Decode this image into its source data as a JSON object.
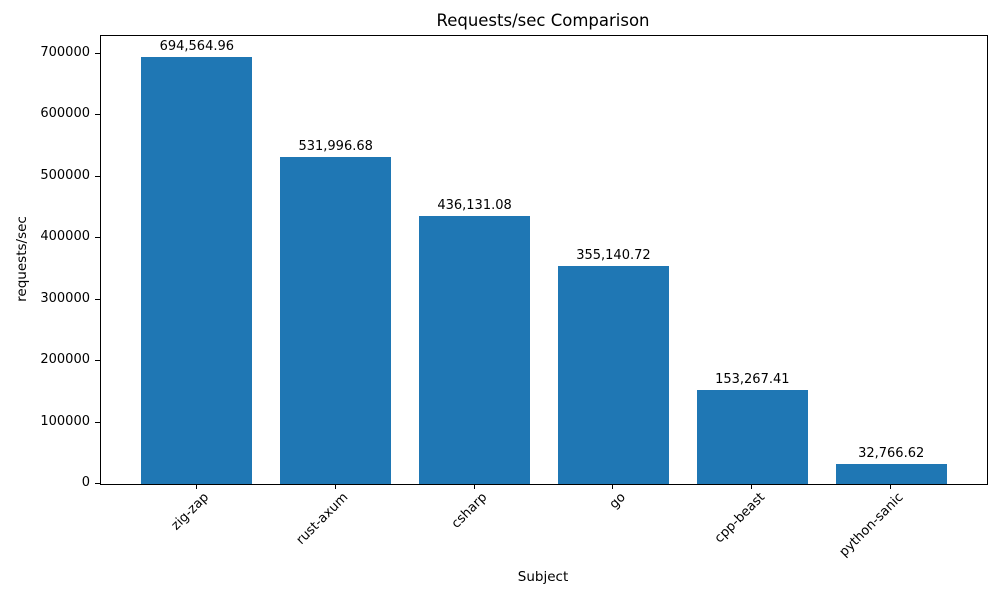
{
  "chart_data": {
    "type": "bar",
    "title": "Requests/sec Comparison",
    "xlabel": "Subject",
    "ylabel": "requests/sec",
    "categories": [
      "zig-zap",
      "rust-axum",
      "csharp",
      "go",
      "cpp-beast",
      "python-sanic"
    ],
    "values": [
      694564.96,
      531996.68,
      436131.08,
      355140.72,
      153267.41,
      32766.62
    ],
    "value_labels": [
      "694,564.96",
      "531,996.68",
      "436,131.08",
      "355,140.72",
      "153,267.41",
      "32,766.62"
    ],
    "y_ticks": [
      0,
      100000,
      200000,
      300000,
      400000,
      500000,
      600000,
      700000
    ],
    "y_tick_labels": [
      "0",
      "100000",
      "200000",
      "300000",
      "400000",
      "500000",
      "600000",
      "700000"
    ],
    "ylim": [
      0,
      729293
    ],
    "bar_color": "#1f77b4",
    "axis_color": "#000000",
    "grid": false,
    "legend": null,
    "x_tick_rotation": 45
  }
}
